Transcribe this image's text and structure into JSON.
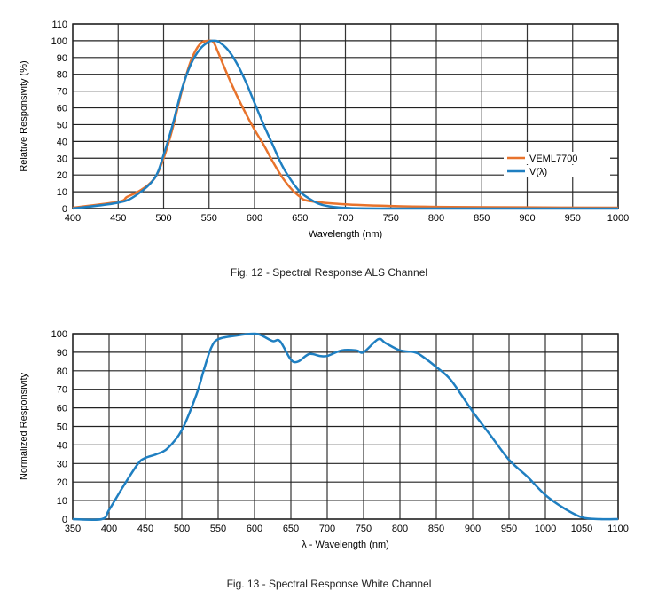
{
  "chart_data": [
    {
      "type": "line",
      "caption": "Fig. 12 - Spectral Response ALS Channel",
      "xlabel": "Wavelength (nm)",
      "ylabel": "Relative Responsivity (%)",
      "xlim": [
        400,
        1000
      ],
      "xticks": [
        400,
        450,
        500,
        550,
        600,
        650,
        700,
        750,
        800,
        850,
        900,
        950,
        1000
      ],
      "ylim": [
        0,
        110
      ],
      "yticks": [
        0,
        10,
        20,
        30,
        40,
        50,
        60,
        70,
        80,
        90,
        100,
        110
      ],
      "grid": true,
      "legend_position": "right",
      "series": [
        {
          "name": "VEML7700",
          "color": "#e8732c",
          "x": [
            400,
            450,
            460,
            475,
            490,
            500,
            510,
            520,
            530,
            540,
            550,
            555,
            560,
            570,
            580,
            590,
            600,
            610,
            620,
            630,
            640,
            650,
            660,
            700,
            750,
            800,
            900,
            1000
          ],
          "y": [
            0.5,
            4,
            7,
            11,
            18,
            30,
            48,
            70,
            88,
            98,
            100,
            99,
            93,
            80,
            68,
            57,
            47,
            38,
            28,
            19,
            12,
            7,
            4.5,
            2.5,
            1.5,
            1,
            0.7,
            0.5
          ]
        },
        {
          "name": "V(λ)",
          "color": "#1f7fc1",
          "x": [
            400,
            450,
            470,
            490,
            500,
            510,
            520,
            530,
            540,
            550,
            555,
            560,
            570,
            580,
            590,
            600,
            610,
            620,
            630,
            640,
            650,
            660,
            670,
            680,
            700,
            750,
            1000
          ],
          "y": [
            0,
            3.5,
            8,
            18,
            32,
            50,
            71,
            86,
            95,
            99.5,
            100,
            99.5,
            95,
            87,
            76,
            63,
            50,
            38,
            26,
            17,
            10,
            6,
            3,
            1.5,
            0.4,
            0,
            0
          ]
        }
      ]
    },
    {
      "type": "line",
      "caption": "Fig. 13 - Spectral Response White Channel",
      "xlabel": "λ - Wavelength (nm)",
      "ylabel": "Normalized Responsivity",
      "xlim": [
        350,
        1100
      ],
      "xticks": [
        350,
        400,
        450,
        500,
        550,
        600,
        650,
        700,
        750,
        800,
        850,
        900,
        950,
        1000,
        1050,
        1100
      ],
      "ylim": [
        0,
        100
      ],
      "yticks": [
        0,
        10,
        20,
        30,
        40,
        50,
        60,
        70,
        80,
        90,
        100
      ],
      "grid": true,
      "series": [
        {
          "color": "#1f7fc1",
          "x": [
            350,
            390,
            400,
            420,
            440,
            450,
            465,
            480,
            500,
            520,
            530,
            540,
            550,
            575,
            600,
            610,
            625,
            635,
            650,
            660,
            675,
            690,
            700,
            720,
            740,
            750,
            770,
            780,
            800,
            820,
            830,
            850,
            870,
            900,
            925,
            950,
            975,
            1000,
            1025,
            1050,
            1075,
            1100
          ],
          "y": [
            0,
            0,
            5,
            18,
            30,
            33,
            35,
            38,
            48,
            67,
            80,
            92,
            97,
            99,
            100,
            99,
            96,
            96,
            86,
            85,
            89,
            88,
            88,
            91,
            91,
            90,
            97,
            95,
            91,
            90,
            88,
            82,
            75,
            58,
            45,
            32,
            23,
            13,
            6,
            1,
            0,
            0
          ]
        }
      ]
    }
  ]
}
